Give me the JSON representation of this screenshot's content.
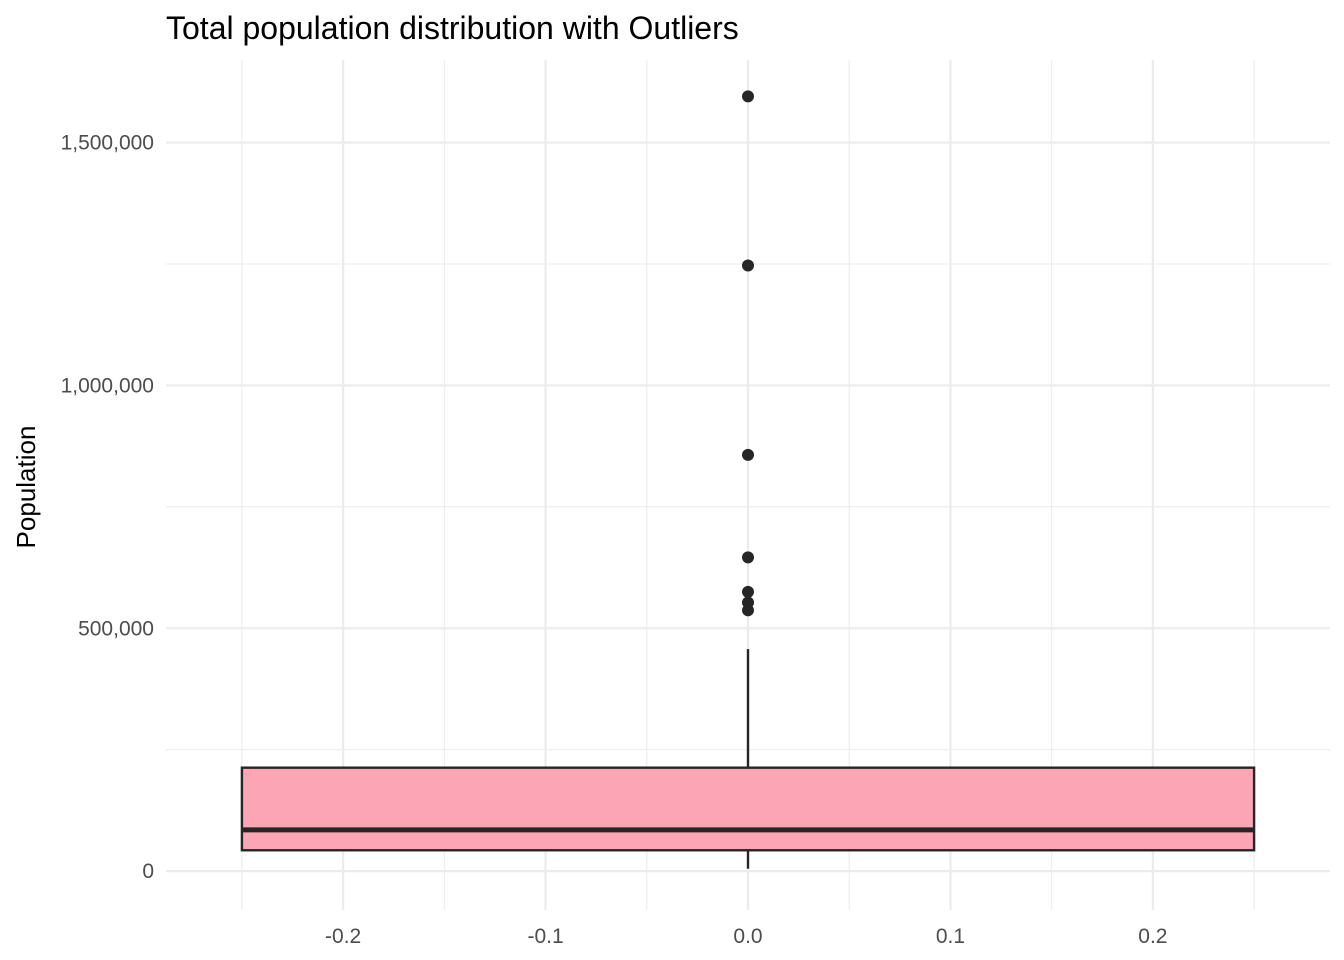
{
  "chart_data": {
    "type": "boxplot",
    "title": "Total population distribution with Outliers",
    "xlabel": "",
    "ylabel": "Population",
    "x_ticks": [
      "-0.2",
      "-0.1",
      "0.0",
      "0.1",
      "0.2"
    ],
    "x_tick_values": [
      -0.2,
      -0.1,
      0.0,
      0.1,
      0.2
    ],
    "y_ticks": [
      "0",
      "500,000",
      "1,000,000",
      "1,500,000"
    ],
    "y_tick_values": [
      0,
      500000,
      1000000,
      1500000
    ],
    "xlim": [
      -0.2875,
      0.2875
    ],
    "ylim": [
      -80000,
      1670000
    ],
    "grid": true,
    "box": {
      "x_center": 0.0,
      "x_range": [
        -0.25,
        0.25
      ],
      "q1": 43000,
      "median": 85000,
      "q3": 213000,
      "whisker_low": 5000,
      "whisker_high": 457000,
      "fill": "#fca6b5",
      "stroke": "#262626"
    },
    "outliers": [
      1595000,
      1247000,
      857000,
      646000,
      575000,
      553000,
      537000
    ],
    "outlier_color": "#262626"
  }
}
